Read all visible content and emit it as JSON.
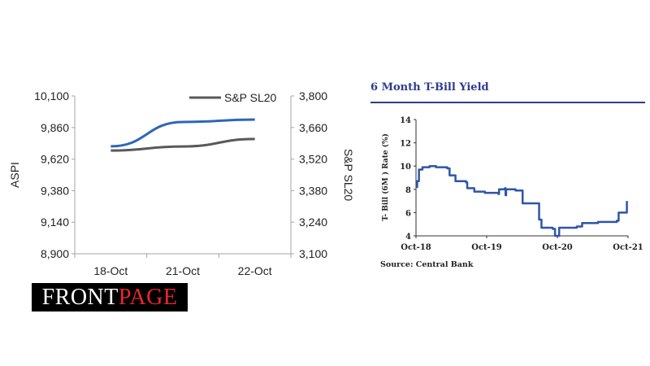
{
  "chart_data": [
    {
      "type": "line",
      "title": "",
      "categories": [
        "18-Oct",
        "21-Oct",
        "22-Oct"
      ],
      "ylabel": "ASPI",
      "y2label": "S&P SL20",
      "ylim": [
        8900,
        10100
      ],
      "yticks": [
        "8,900",
        "9,140",
        "9,380",
        "9,620",
        "9,860",
        "10,100"
      ],
      "y2lim": [
        3100,
        3800
      ],
      "y2ticks": [
        "3,100",
        "3,240",
        "3,380",
        "3,520",
        "3,660",
        "3,800"
      ],
      "legend": {
        "position": "top-right",
        "entries": [
          "S&P SL20"
        ]
      },
      "series": [
        {
          "name": "ASPI",
          "axis": "left",
          "color": "#2e66b8",
          "values": [
            9717,
            9902,
            9921
          ]
        },
        {
          "name": "S&P SL20",
          "axis": "right",
          "color": "#595959",
          "values": [
            3558,
            3576,
            3609
          ]
        }
      ]
    },
    {
      "type": "line",
      "title": "6 Month T-Bill Yield",
      "ylabel": "T- Bill (6M ) Rate (%)",
      "xlabel": "",
      "xticks": [
        "Oct-18",
        "Oct-19",
        "Oct-20",
        "Oct-21"
      ],
      "xlim_months": [
        0,
        36
      ],
      "ylim": [
        4,
        14
      ],
      "yticks": [
        "4",
        "6",
        "8",
        "10",
        "12",
        "14"
      ],
      "source": "Source: Central Bank",
      "color": "#2e56a8",
      "series": [
        {
          "name": "6M T-Bill",
          "x_months": [
            0,
            0.2,
            0.5,
            1.1,
            2.3,
            3.4,
            5.3,
            5.7,
            6.7,
            8.5,
            8.7,
            9.9,
            11.7,
            14,
            14.1,
            15.1,
            15.2,
            15.3,
            16.9,
            18.1,
            19.9,
            20.9,
            21.3,
            23.2,
            23.6,
            24.3,
            27.3,
            28.2,
            30.9,
            34.1,
            34.4,
            35.3,
            35.8
          ],
          "values": [
            8.2,
            8.7,
            9.7,
            9.9,
            10.0,
            9.9,
            9.8,
            9.2,
            8.7,
            8.6,
            8.1,
            7.8,
            7.7,
            7.6,
            8.0,
            8.1,
            7.5,
            8.0,
            7.9,
            6.8,
            6.8,
            5.4,
            4.7,
            4.6,
            4.0,
            4.7,
            4.8,
            5.1,
            5.2,
            5.3,
            6.0,
            6.0,
            7.0
          ]
        }
      ]
    }
  ],
  "logo": {
    "part1": "FRONT",
    "part2": "PAGE"
  }
}
